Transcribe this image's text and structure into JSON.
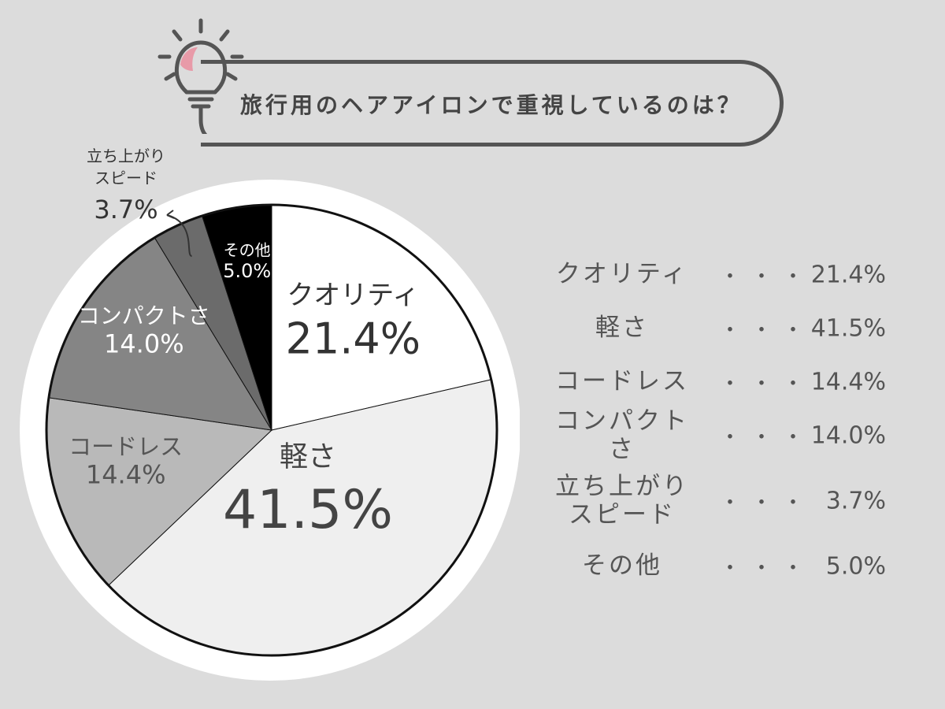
{
  "title": "旅行用のヘアアイロンで重視しているのは？",
  "icon": "lightbulb-icon",
  "colors": {
    "background": "#dcdcdc",
    "accent": "#e89aa8",
    "slices": [
      "#ffffff",
      "#efefef",
      "#b9b9b9",
      "#858585",
      "#6b6b6b",
      "#000000"
    ]
  },
  "chart_data": {
    "type": "pie",
    "title": "旅行用のヘアアイロンで重視しているのは？",
    "start": "12 o'clock, clockwise",
    "slices": [
      {
        "label": "クオリティ",
        "value": 21.4,
        "value_text": "21.4%"
      },
      {
        "label": "軽さ",
        "value": 41.5,
        "value_text": "41.5%"
      },
      {
        "label": "コードレス",
        "value": 14.4,
        "value_text": "14.4%"
      },
      {
        "label": "コンパクトさ",
        "value": 14.0,
        "value_text": "14.0%"
      },
      {
        "label": "立ち上がりスピード",
        "label_lines": [
          "立ち上がり",
          "スピード"
        ],
        "value": 3.7,
        "value_text": "3.7%"
      },
      {
        "label": "その他",
        "value": 5.0,
        "value_text": "5.0%"
      }
    ]
  },
  "legend": {
    "separator": "・・・",
    "rows": [
      {
        "label": "クオリティ",
        "value": "21.4%"
      },
      {
        "label": "軽さ",
        "value": "41.5%"
      },
      {
        "label": "コードレス",
        "value": "14.4%"
      },
      {
        "label": "コンパクトさ",
        "value": "14.0%"
      },
      {
        "label": "立ち上がり",
        "label2": "スピード",
        "value": "3.7%"
      },
      {
        "label": "その他",
        "value": "5.0%"
      }
    ]
  }
}
